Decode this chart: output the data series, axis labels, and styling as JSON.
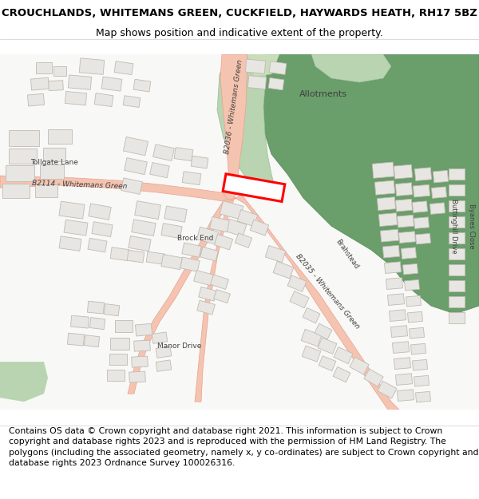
{
  "title_line1": "CROUCHLANDS, WHITEMANS GREEN, CUCKFIELD, HAYWARDS HEATH, RH17 5BZ",
  "title_line2": "Map shows position and indicative extent of the property.",
  "footer_text": "Contains OS data © Crown copyright and database right 2021. This information is subject to Crown copyright and database rights 2023 and is reproduced with the permission of HM Land Registry. The polygons (including the associated geometry, namely x, y co-ordinates) are subject to Crown copyright and database rights 2023 Ordnance Survey 100026316.",
  "title_fontsize": 9.5,
  "subtitle_fontsize": 9.0,
  "footer_fontsize": 7.8,
  "bg_color": "#ffffff",
  "title_color": "#000000",
  "map_bg": "#f8f8f6",
  "road_fill": "#f5c4b0",
  "road_edge": "#e8a090",
  "green_dark": "#6a9e6a",
  "green_light": "#b8d4b0",
  "building_fill": "#e8e6e2",
  "building_edge": "#c0bab4",
  "red_rect_color": "#ff0000"
}
